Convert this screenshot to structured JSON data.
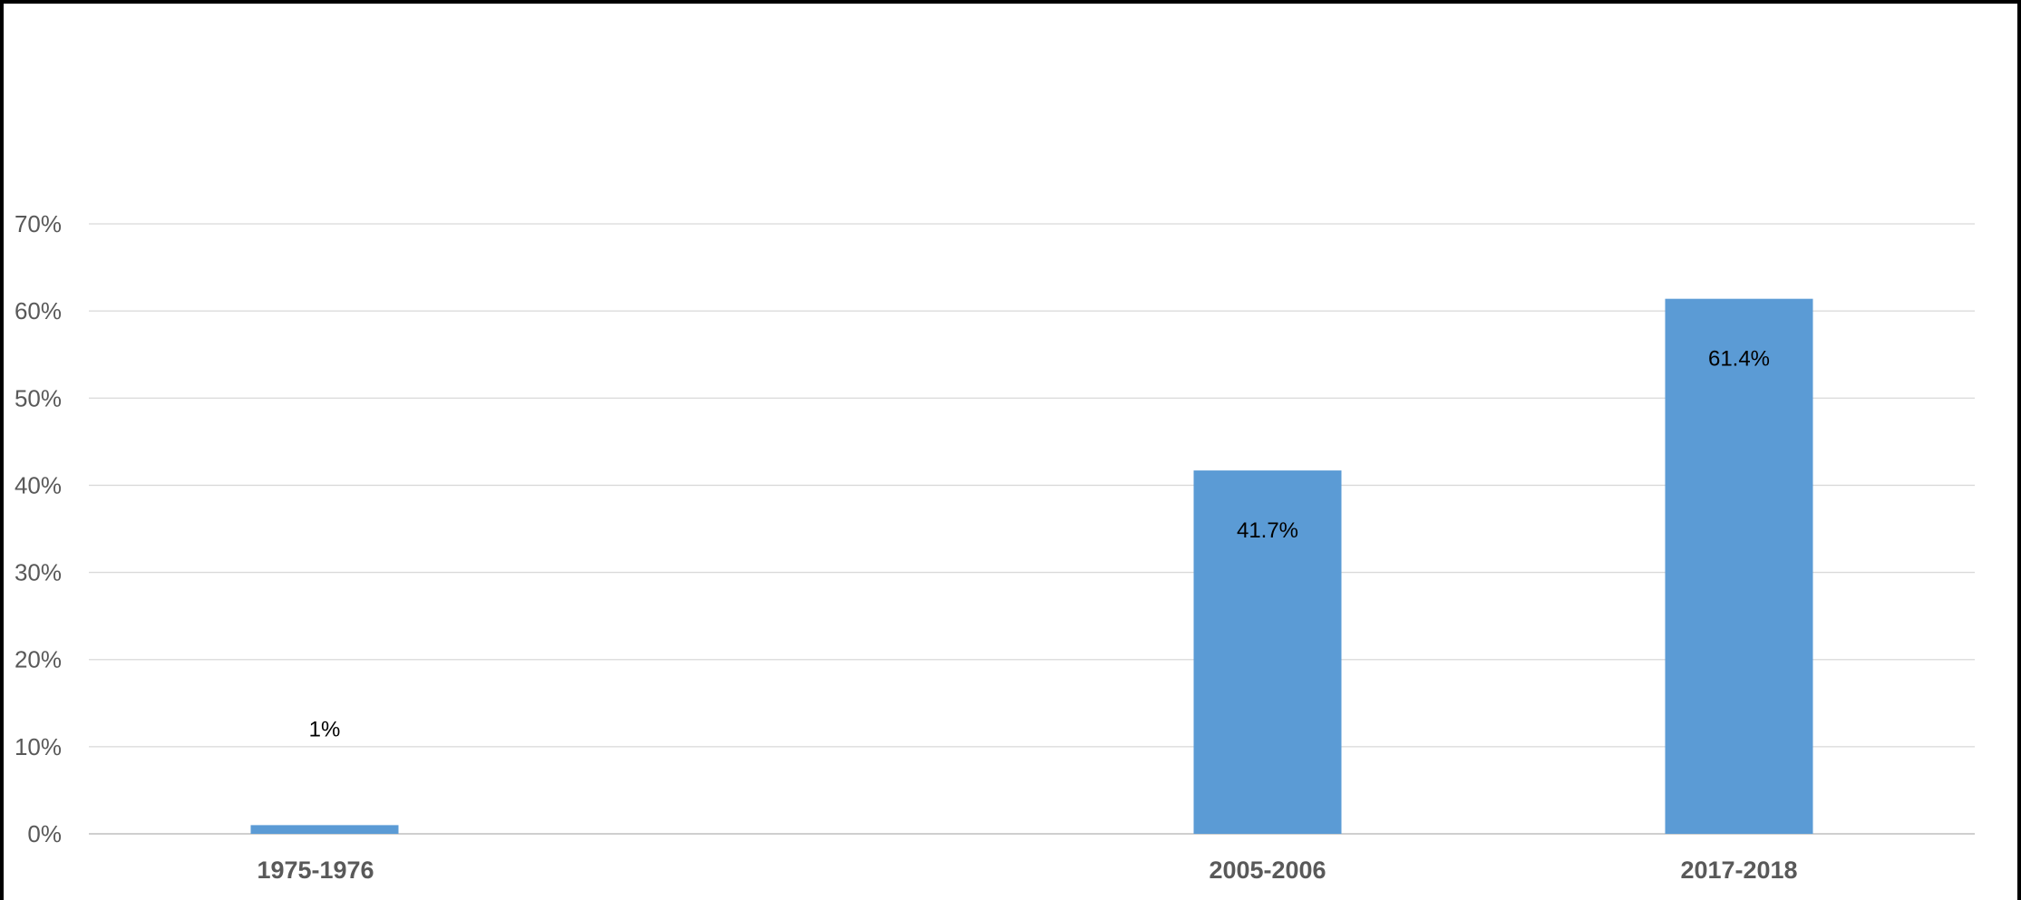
{
  "chart_data": {
    "type": "bar",
    "title": "",
    "xlabel": "",
    "ylabel": "",
    "categories": [
      "1975-1976",
      "2005-2006",
      "2017-2018"
    ],
    "category_positions": [
      0,
      2,
      3
    ],
    "series": [
      {
        "values": [
          1,
          41.7,
          61.4
        ],
        "data_labels": [
          "1%",
          "41.7%",
          "61.4%"
        ],
        "color": "#5B9BD5"
      }
    ],
    "ylim": [
      0,
      70
    ],
    "yticks": [
      0,
      10,
      20,
      30,
      40,
      50,
      60,
      70
    ],
    "ytick_labels": [
      "0%",
      "10%",
      "20%",
      "30%",
      "40%",
      "50%",
      "60%",
      "70%"
    ],
    "grid": true,
    "legend": "none",
    "colors": {
      "bar": "#5B9BD5",
      "gridline": "#D9D9D9",
      "tick_text": "#595959",
      "data_label_text": "#000000",
      "border": "#000000"
    }
  }
}
